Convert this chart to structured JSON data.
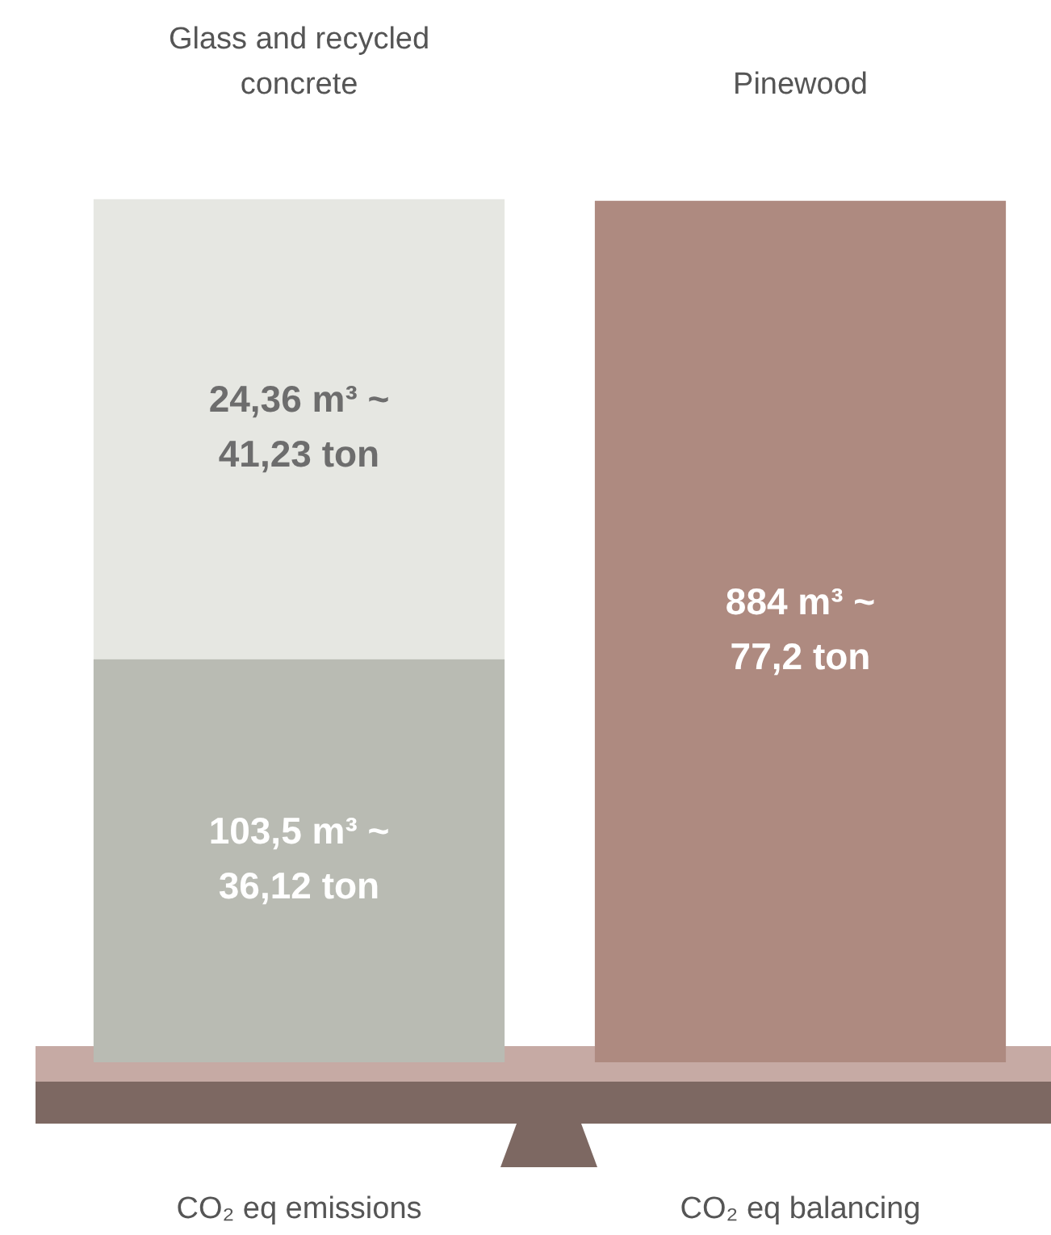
{
  "chart_data": {
    "type": "bar",
    "stacked": true,
    "legend": false,
    "grid": false,
    "tick_labels": "x",
    "categories": [
      "CO₂ eq emissions",
      "CO₂ eq balancing"
    ],
    "series": [
      {
        "color": "#b9bbb3",
        "values": [
          36.12,
          null
        ],
        "value_labels": [
          "103,5 m³ ~ 36,12 ton",
          null
        ]
      },
      {
        "color": "#e6e7e2",
        "values": [
          41.23,
          null
        ],
        "value_labels": [
          "24,36 m³ ~ 41,23 ton",
          null
        ]
      },
      {
        "color": "#ae8a80",
        "values": [
          null,
          77.2
        ],
        "value_labels": [
          null,
          "884 m³ ~ 77,2 ton"
        ]
      }
    ],
    "annotations": [
      "Glass and recycled concrete",
      "Pinewood"
    ]
  }
}
